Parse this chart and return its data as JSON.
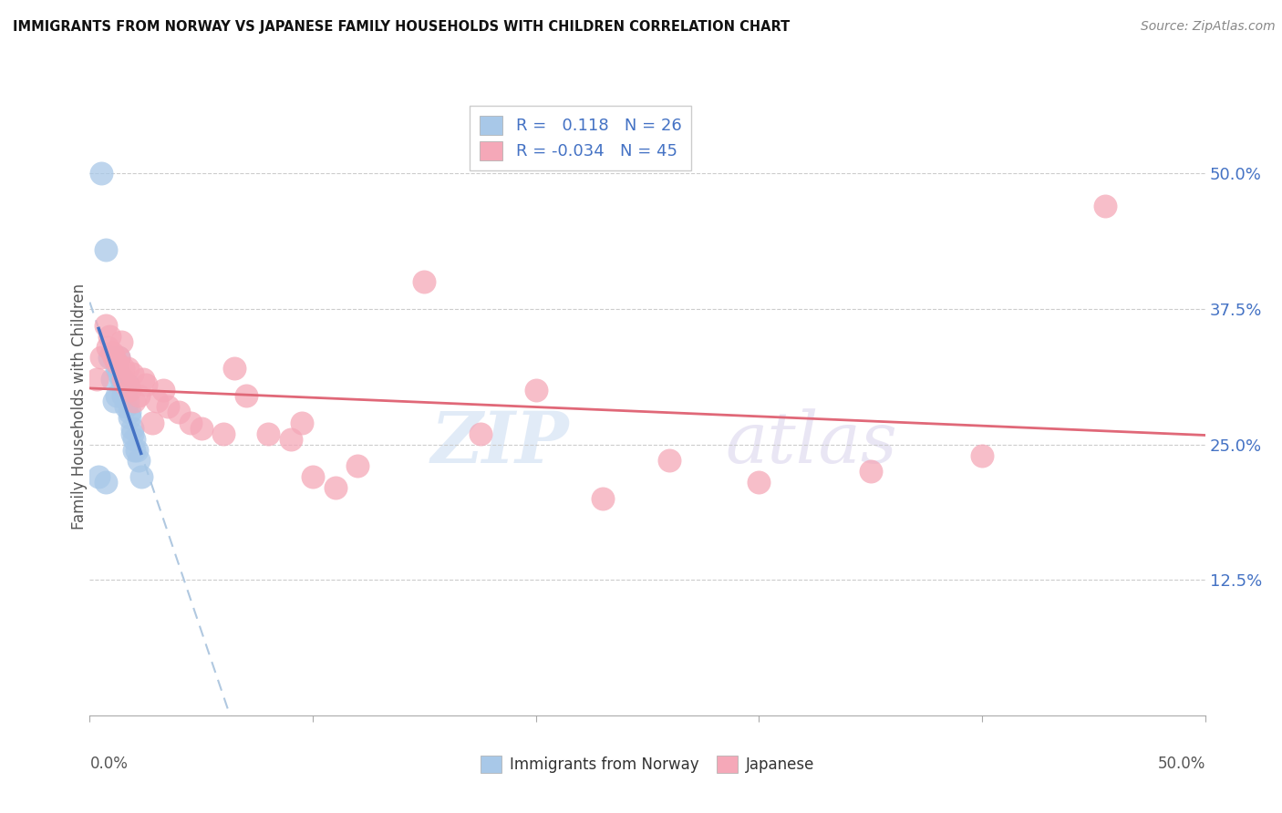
{
  "title": "IMMIGRANTS FROM NORWAY VS JAPANESE FAMILY HOUSEHOLDS WITH CHILDREN CORRELATION CHART",
  "source": "Source: ZipAtlas.com",
  "ylabel": "Family Households with Children",
  "xlim": [
    0.0,
    0.5
  ],
  "ylim": [
    0.0,
    0.57
  ],
  "ytick_vals_right": [
    0.5,
    0.375,
    0.25,
    0.125
  ],
  "ytick_labels_right": [
    "50.0%",
    "37.5%",
    "25.0%",
    "12.5%"
  ],
  "norway_R": 0.118,
  "norway_N": 26,
  "japanese_R": -0.034,
  "japanese_N": 45,
  "norway_color": "#a8c8e8",
  "japanese_color": "#f5a8b8",
  "norway_line_color": "#4472c4",
  "japanese_line_color": "#e06878",
  "dashed_line_color": "#b0c8e0",
  "watermark_zip": "ZIP",
  "watermark_atlas": "atlas",
  "norway_x": [
    0.005,
    0.007,
    0.009,
    0.01,
    0.011,
    0.012,
    0.012,
    0.013,
    0.013,
    0.014,
    0.015,
    0.016,
    0.016,
    0.017,
    0.017,
    0.018,
    0.018,
    0.019,
    0.019,
    0.02,
    0.02,
    0.021,
    0.022,
    0.023,
    0.004,
    0.007
  ],
  "norway_y": [
    0.5,
    0.43,
    0.33,
    0.31,
    0.29,
    0.32,
    0.295,
    0.315,
    0.33,
    0.31,
    0.295,
    0.285,
    0.3,
    0.29,
    0.305,
    0.28,
    0.275,
    0.265,
    0.26,
    0.255,
    0.245,
    0.245,
    0.235,
    0.22,
    0.22,
    0.215
  ],
  "japanese_x": [
    0.003,
    0.005,
    0.007,
    0.008,
    0.009,
    0.01,
    0.011,
    0.012,
    0.013,
    0.014,
    0.015,
    0.015,
    0.016,
    0.017,
    0.018,
    0.019,
    0.02,
    0.022,
    0.024,
    0.025,
    0.028,
    0.03,
    0.033,
    0.035,
    0.04,
    0.045,
    0.05,
    0.06,
    0.065,
    0.07,
    0.08,
    0.09,
    0.095,
    0.1,
    0.11,
    0.12,
    0.15,
    0.175,
    0.2,
    0.23,
    0.26,
    0.3,
    0.35,
    0.4,
    0.455
  ],
  "japanese_y": [
    0.31,
    0.33,
    0.36,
    0.34,
    0.35,
    0.335,
    0.33,
    0.325,
    0.33,
    0.345,
    0.31,
    0.32,
    0.305,
    0.32,
    0.3,
    0.315,
    0.29,
    0.295,
    0.31,
    0.305,
    0.27,
    0.29,
    0.3,
    0.285,
    0.28,
    0.27,
    0.265,
    0.26,
    0.32,
    0.295,
    0.26,
    0.255,
    0.27,
    0.22,
    0.21,
    0.23,
    0.4,
    0.26,
    0.3,
    0.2,
    0.235,
    0.215,
    0.225,
    0.24,
    0.47
  ]
}
